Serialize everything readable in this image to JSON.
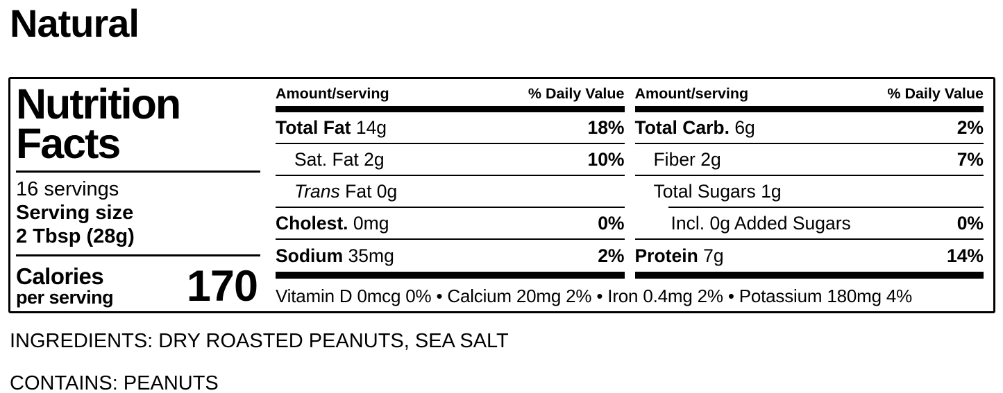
{
  "colors": {
    "text": "#000000",
    "background": "#ffffff"
  },
  "page": {
    "title": "Natural",
    "ingredients_line": "INGREDIENTS: DRY ROASTED PEANUTS, SEA SALT",
    "contains_line": "CONTAINS: PEANUTS"
  },
  "label": {
    "heading_line1": "Nutrition",
    "heading_line2": "Facts",
    "servings": "16 servings",
    "serving_size_label": "Serving size",
    "serving_size_value": "2 Tbsp (28g)",
    "calories_label": "Calories",
    "calories_sublabel": "per serving",
    "calories_value": "170",
    "columns": [
      {
        "header_amount": "Amount/serving",
        "header_dv": "% Daily Value",
        "rows": [
          {
            "name": "Total Fat",
            "amount": "14g",
            "dv": "18%"
          },
          {
            "name": "Sat. Fat",
            "amount": "2g",
            "dv": "10%"
          },
          {
            "name": "Trans",
            "amount": "Fat 0g",
            "dv": ""
          },
          {
            "name": "Cholest.",
            "amount": "0mg",
            "dv": "0%"
          },
          {
            "name": "Sodium",
            "amount": "35mg",
            "dv": "2%"
          }
        ]
      },
      {
        "header_amount": "Amount/serving",
        "header_dv": "% Daily Value",
        "rows": [
          {
            "name": "Total Carb.",
            "amount": "6g",
            "dv": "2%"
          },
          {
            "name": "Fiber",
            "amount": "2g",
            "dv": "7%"
          },
          {
            "name": "Total Sugars",
            "amount": "1g",
            "dv": ""
          },
          {
            "name": "Incl. 0g Added Sugars",
            "amount": "",
            "dv": "0%"
          },
          {
            "name": "Protein",
            "amount": "7g",
            "dv": "14%"
          }
        ]
      }
    ],
    "micronutrients": "Vitamin D 0mcg 0% • Calcium 20mg 2% • Iron 0.4mg 2% • Potassium 180mg 4%"
  }
}
